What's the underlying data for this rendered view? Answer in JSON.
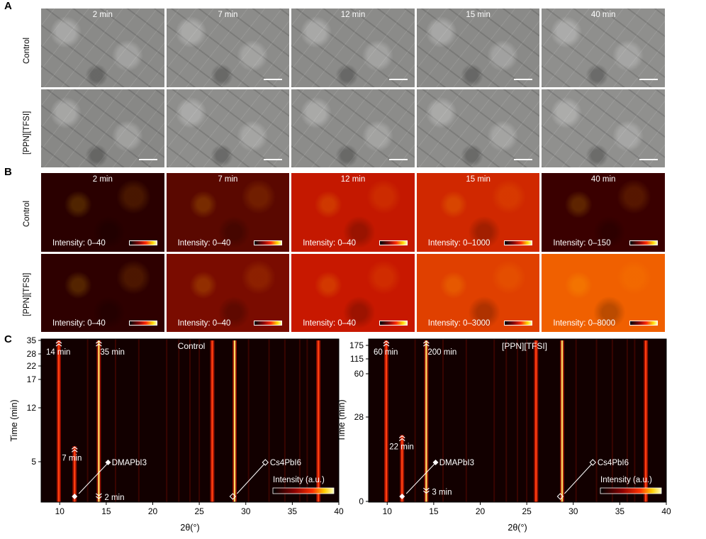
{
  "panels": {
    "a": "A",
    "b": "B",
    "c": "C"
  },
  "row_labels": {
    "control": "Control",
    "ppn": "[PPN][TFSI]"
  },
  "times": [
    "2 min",
    "7 min",
    "12 min",
    "15 min",
    "40 min"
  ],
  "sem_brightness": {
    "control": [
      "#8a8a88",
      "#8c8c8a",
      "#8b8b89",
      "#8a8a88",
      "#8f8f8d"
    ],
    "ppn": [
      "#888886",
      "#8e8e8c",
      "#8c8c8a",
      "#8d8d8b",
      "#90908e"
    ]
  },
  "pl": {
    "intensity_label": "Intensity:",
    "control_ranges": [
      "0–40",
      "0–40",
      "0–40",
      "0–1000",
      "0–150"
    ],
    "ppn_ranges": [
      "0–40",
      "0–40",
      "0–40",
      "0–3000",
      "0–8000"
    ],
    "control_bg": [
      "#2a0000",
      "#5a0800",
      "#c41800",
      "#d02800",
      "#3a0000"
    ],
    "ppn_bg": [
      "#2e0000",
      "#7a0c00",
      "#c81800",
      "#e04000",
      "#f06000"
    ]
  },
  "chart_data": [
    {
      "type": "heatmap",
      "title": "Control",
      "xlabel": "2θ(°)",
      "ylabel": "Time (min)",
      "xlim": [
        8,
        40
      ],
      "x_ticks": [
        10,
        15,
        20,
        25,
        30,
        35,
        40
      ],
      "y_ticks": [
        5,
        12,
        17,
        22,
        28,
        35
      ],
      "colorbar_label": "Intensity (a.u.)",
      "peaks": [
        {
          "x": 9.9,
          "t_start": 14,
          "t_end": 35,
          "label": "14 min"
        },
        {
          "x": 11.6,
          "t_start": 2,
          "t_end": 7,
          "label": "7 min"
        },
        {
          "x": 14.2,
          "t_start": 2,
          "t_end": 35,
          "label": "35 min"
        },
        {
          "x": 26.4,
          "t_start": 2,
          "t_end": 35
        },
        {
          "x": 28.8,
          "t_start": 2,
          "t_end": 35
        },
        {
          "x": 37.8,
          "t_start": 2,
          "t_end": 35
        }
      ],
      "annotations": [
        {
          "text": "DMAPbI3",
          "x": 11.6,
          "t": 2
        },
        {
          "text": "Cs4PbI6",
          "x": 28.6,
          "t": 2
        },
        {
          "text": "2 min",
          "x": 14.2,
          "t": 2
        }
      ]
    },
    {
      "type": "heatmap",
      "title": "[PPN][TFSI]",
      "xlabel": "2θ(°)",
      "ylabel": "Time (min)",
      "xlim": [
        8,
        40
      ],
      "x_ticks": [
        10,
        15,
        20,
        25,
        30,
        35,
        40
      ],
      "y_ticks": [
        0,
        28,
        60,
        115,
        175
      ],
      "colorbar_label": "Intensity (a.u.)",
      "peaks": [
        {
          "x": 9.9,
          "t_start": 60,
          "t_end": 200,
          "label": "60 min"
        },
        {
          "x": 11.6,
          "t_start": 0,
          "t_end": 22,
          "label": "22 min"
        },
        {
          "x": 14.2,
          "t_start": 3,
          "t_end": 200,
          "label": "200 min"
        },
        {
          "x": 26.0,
          "t_start": 0,
          "t_end": 200
        },
        {
          "x": 28.8,
          "t_start": 0,
          "t_end": 200
        },
        {
          "x": 37.8,
          "t_start": 0,
          "t_end": 200
        }
      ],
      "annotations": [
        {
          "text": "DMAPbI3",
          "x": 11.6,
          "t": 0
        },
        {
          "text": "Cs4PbI6",
          "x": 28.6,
          "t": 0
        },
        {
          "text": "3 min",
          "x": 14.2,
          "t": 3
        }
      ]
    }
  ]
}
